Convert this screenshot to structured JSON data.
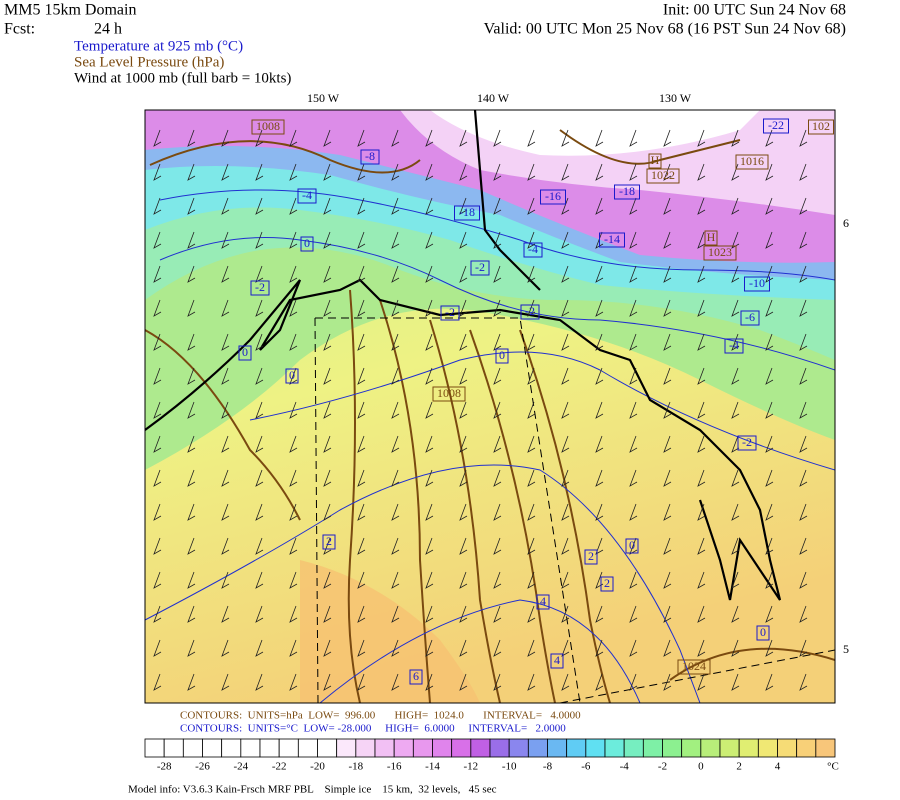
{
  "header": {
    "domain": "MM5 15km Domain",
    "forecast_label": "Fcst:",
    "forecast_hours": "24 h",
    "init": "Init: 00 UTC Sun 24 Nov 68",
    "valid": "Valid: 00 UTC Mon 25 Nov 68 (16 PST Sun 24 Nov 68)",
    "fields": [
      "Temperature at 925 mb (°C)",
      "Sea Level Pressure (hPa)",
      "Wind at 1000 mb (full barb = 10kts)"
    ]
  },
  "longitude_labels": [
    "150 W",
    "140 W",
    "130 W"
  ],
  "latitude_labels": [
    "6",
    "5"
  ],
  "temperature_labels": [
    "-8",
    "-4",
    "0",
    "-2",
    "0",
    "0",
    "-18",
    "-16",
    "-18",
    "-14",
    "-4",
    "-2",
    "-2",
    "-2",
    "0",
    "-22",
    "-10",
    "-6",
    "-4",
    "-2",
    "2",
    "2",
    "0",
    "2",
    "4",
    "0",
    "4",
    "6"
  ],
  "pressure_labels": [
    "1008",
    "1008",
    "H",
    "1022",
    "1016",
    "102",
    "H",
    "1023",
    "1024"
  ],
  "footer": {
    "pressure_contours": "CONTOURS:  UNITS=hPa  LOW=  996.00       HIGH=  1024.0       INTERVAL=   4.0000",
    "temperature_contours": "CONTOURS:  UNITS=°C  LOW= -28.000     HIGH=  6.0000     INTERVAL=   2.0000"
  },
  "colorbar": {
    "labels": [
      -28,
      -26,
      -24,
      -22,
      -20,
      -18,
      -16,
      -14,
      -12,
      -10,
      -8,
      -6,
      -4,
      -2,
      0,
      2,
      4
    ],
    "unit": "°C"
  },
  "model_info": "Model info: V3.6.3 Kain-Frsch MRF PBL    Simple ice    15 km,  32 levels,   45 sec"
}
